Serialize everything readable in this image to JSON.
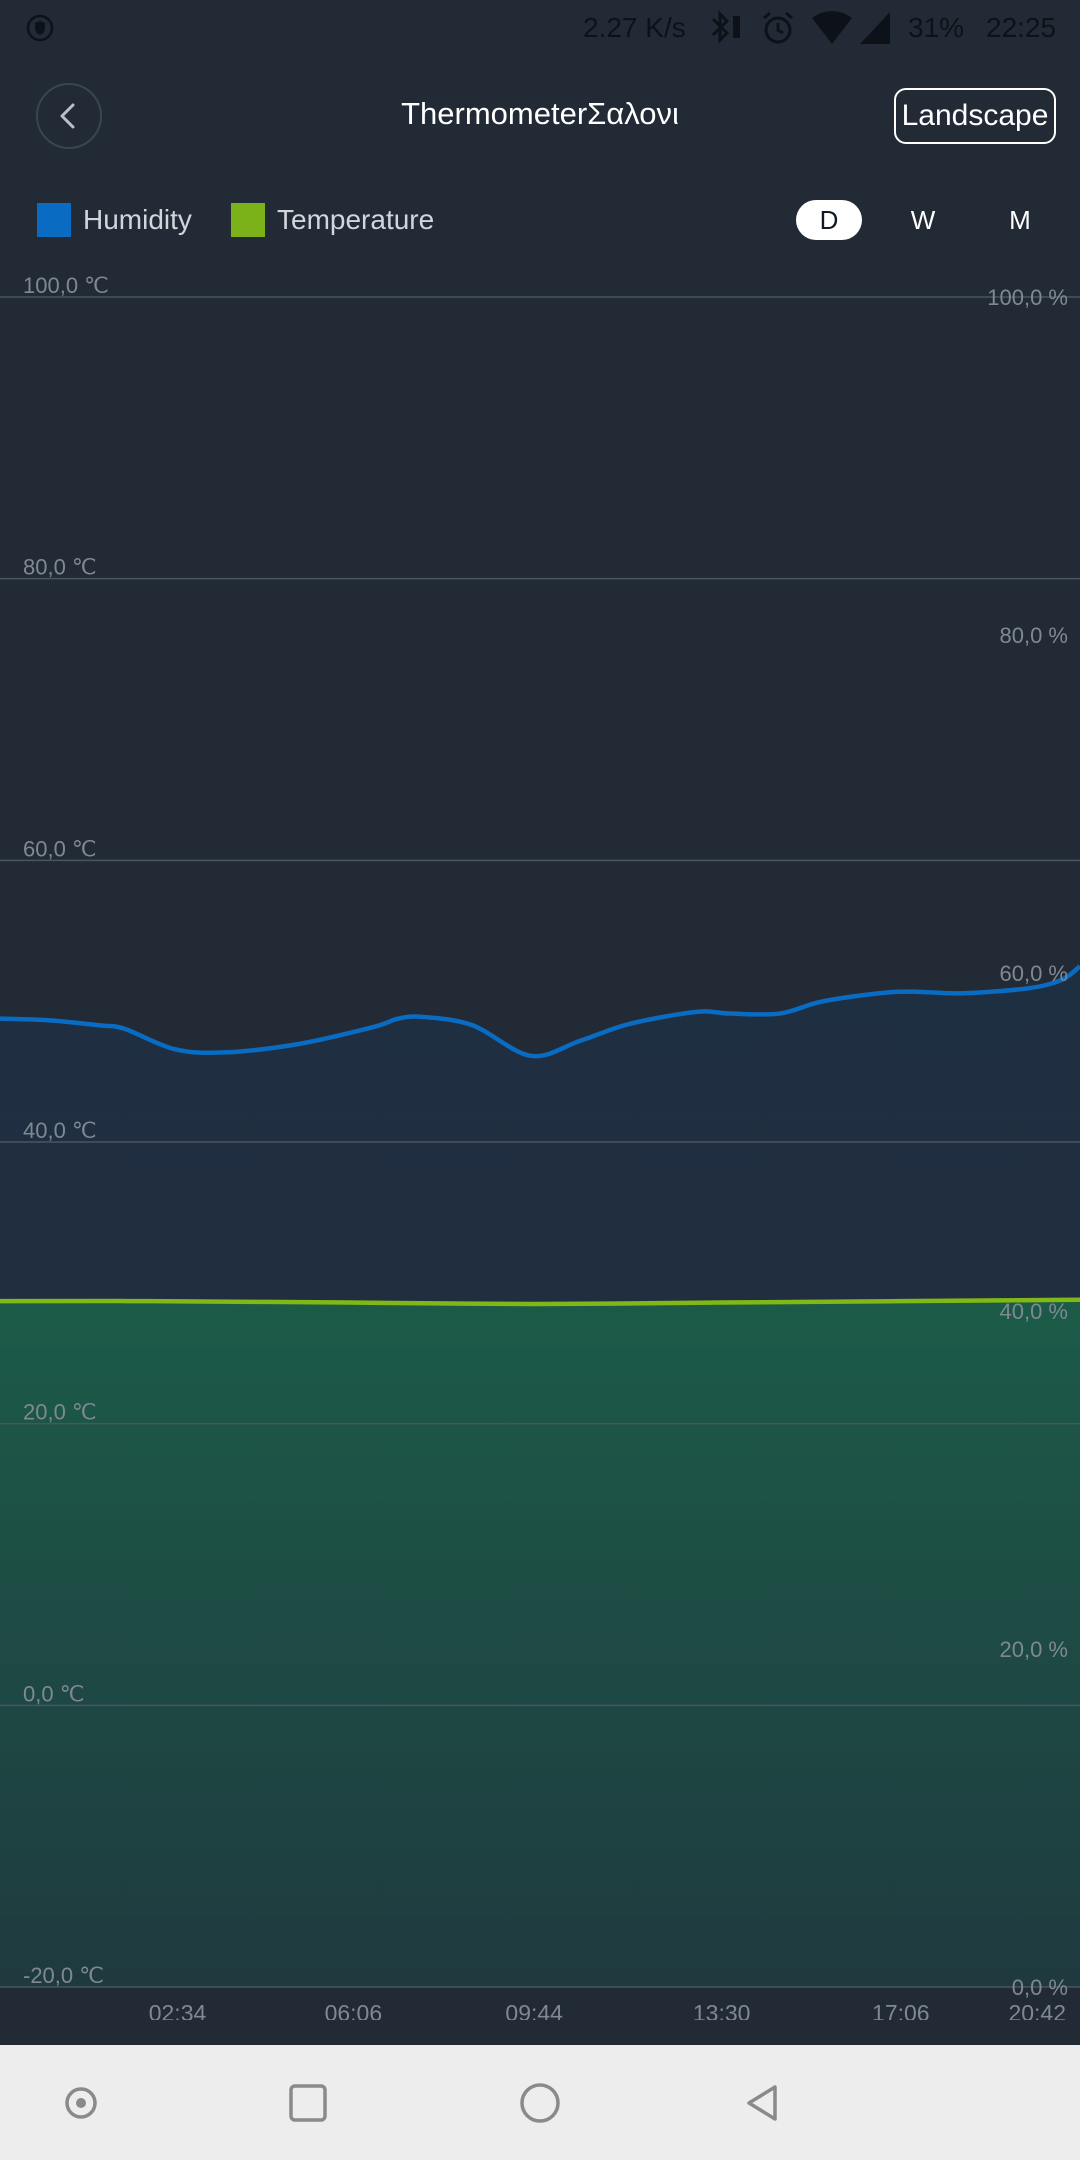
{
  "status_bar": {
    "network_speed": "2.27 K/s",
    "battery": "31%",
    "time": "22:25",
    "icons": [
      "shield-icon",
      "bluetooth-icon",
      "alarm-icon",
      "wifi-icon",
      "signal-icon"
    ]
  },
  "header": {
    "title": "ThermometerΣαλονι",
    "back_icon": "chevron-left-icon",
    "landscape_label": "Landscape"
  },
  "legend": [
    {
      "label": "Humidity",
      "color": "#0a6bc2"
    },
    {
      "label": "Temperature",
      "color": "#7bb21a"
    }
  ],
  "period": {
    "options": [
      "D",
      "W",
      "M"
    ],
    "selected": "D"
  },
  "colors": {
    "background": "#212a35",
    "humidity_line": "#0a6bc2",
    "temperature_line": "#80b817",
    "temperature_fill": "#1d5a48",
    "gridline": "#4a5562",
    "axis_text": "#7f8893"
  },
  "chart_data": {
    "type": "line",
    "x_tick_labels": [
      "02:34",
      "06:06",
      "09:44",
      "13:30",
      "17:06",
      "20:42"
    ],
    "left_axis": {
      "ticks": [
        100,
        80,
        60,
        40,
        20,
        0,
        -20
      ],
      "tick_labels": [
        "100,0 ℃",
        "80,0 ℃",
        "60,0 ℃",
        "40,0 ℃",
        "20,0 ℃",
        "0,0 ℃",
        "-20,0 ℃"
      ],
      "range": [
        -20,
        100
      ]
    },
    "right_axis": {
      "ticks": [
        100,
        80,
        60,
        40,
        20,
        0
      ],
      "tick_labels": [
        "100,0 %",
        "80,0 %",
        "60,0 %",
        "40,0 %",
        "20,0 %",
        "0,0 %"
      ],
      "range": [
        0,
        100
      ]
    },
    "x_range": [
      "23:00",
      "20:42"
    ],
    "series": [
      {
        "name": "Humidity",
        "axis": "right",
        "x": [
          "23:00",
          "00:00",
          "01:00",
          "01:30",
          "02:30",
          "03:30",
          "05:00",
          "06:30",
          "07:00",
          "07:30",
          "08:30",
          "09:40",
          "10:40",
          "11:40",
          "13:00",
          "13:40",
          "14:40",
          "15:30",
          "16:40",
          "17:20",
          "18:20",
          "19:40",
          "20:20",
          "20:42"
        ],
        "values": [
          57.3,
          57.2,
          56.9,
          56.7,
          55.5,
          55.3,
          55.8,
          56.8,
          57.3,
          57.4,
          56.9,
          55.1,
          56.0,
          57.0,
          57.7,
          57.6,
          57.6,
          58.3,
          58.8,
          58.9,
          58.8,
          59.1,
          59.6,
          60.4
        ]
      },
      {
        "name": "Temperature",
        "axis": "left",
        "x": [
          "23:00",
          "02:00",
          "06:00",
          "09:44",
          "13:30",
          "17:06",
          "20:42"
        ],
        "values": [
          28.7,
          28.7,
          28.6,
          28.5,
          28.6,
          28.7,
          28.8
        ]
      }
    ],
    "grid": true
  },
  "nav_bar": {
    "buttons": [
      "screen-record-icon",
      "recents-icon",
      "home-icon",
      "back-icon"
    ]
  }
}
